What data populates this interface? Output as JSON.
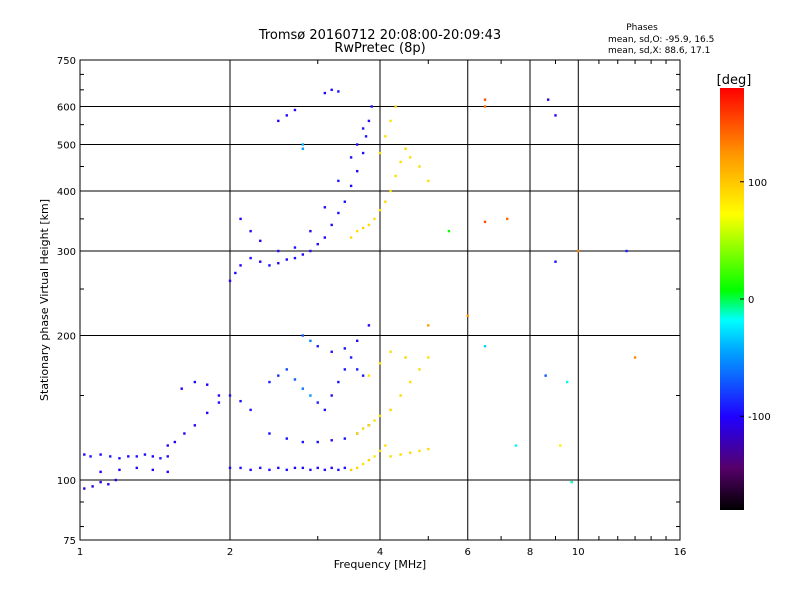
{
  "title": "Tromsø 20160712 20:08:00-20:09:43",
  "subtitle": "RwPretec (8p)",
  "stats": {
    "heading": "Phases",
    "line_o": "mean, sd,O: -95.9, 16.5",
    "line_x": "mean, sd,X: 88.6, 17.1"
  },
  "chart_data": {
    "type": "scatter",
    "title": "Tromsø 20160712 20:08:00-20:09:43",
    "subtitle": "RwPretec (8p)",
    "xlabel": "Frequency [MHz]",
    "ylabel": "Stationary phase Virtual Height [km]",
    "xscale": "log",
    "yscale": "log",
    "xlim": [
      1,
      16
    ],
    "ylim": [
      75,
      750
    ],
    "x_ticks": [
      1,
      2,
      4,
      6,
      8,
      10,
      16
    ],
    "x_tick_labels": [
      "1",
      "2",
      "4",
      "6",
      "8",
      "10",
      "16"
    ],
    "y_ticks": [
      75,
      100,
      200,
      300,
      400,
      500,
      600,
      750
    ],
    "y_tick_labels": [
      "75",
      "100",
      "200",
      "300",
      "400",
      "500",
      "600",
      "750"
    ],
    "grid": true,
    "colorbar": {
      "label": "[deg]",
      "range": [
        -180,
        180
      ],
      "ticks": [
        100,
        0,
        -100
      ],
      "tick_labels": [
        "100",
        "0",
        "-100"
      ]
    },
    "series": [
      {
        "name": "O",
        "mean_phase": -95.9,
        "sd_phase": 16.5,
        "points": [
          [
            1.02,
            113,
            -98
          ],
          [
            1.05,
            112,
            -95
          ],
          [
            1.1,
            113,
            -100
          ],
          [
            1.15,
            112,
            -92
          ],
          [
            1.2,
            111,
            -96
          ],
          [
            1.25,
            112,
            -99
          ],
          [
            1.3,
            112,
            -94
          ],
          [
            1.35,
            113,
            -97
          ],
          [
            1.4,
            112,
            -101
          ],
          [
            1.45,
            111,
            -93
          ],
          [
            1.5,
            112,
            -98
          ],
          [
            1.02,
            96,
            -110
          ],
          [
            1.06,
            97,
            -112
          ],
          [
            1.1,
            99,
            -108
          ],
          [
            1.14,
            98,
            -105
          ],
          [
            1.18,
            100,
            -110
          ],
          [
            1.1,
            104,
            -100
          ],
          [
            1.2,
            105,
            -102
          ],
          [
            1.3,
            106,
            -98
          ],
          [
            1.4,
            105,
            -100
          ],
          [
            1.5,
            104,
            -99
          ],
          [
            1.5,
            118,
            -105
          ],
          [
            1.55,
            120,
            -103
          ],
          [
            1.62,
            125,
            -101
          ],
          [
            1.7,
            130,
            -100
          ],
          [
            1.8,
            138,
            -99
          ],
          [
            1.9,
            145,
            -97
          ],
          [
            2.0,
            150,
            -95
          ],
          [
            2.1,
            146,
            -96
          ],
          [
            2.2,
            140,
            -94
          ],
          [
            1.6,
            155,
            -100
          ],
          [
            1.7,
            160,
            -98
          ],
          [
            1.8,
            158,
            -102
          ],
          [
            1.9,
            150,
            -99
          ],
          [
            2.0,
            106,
            -98
          ],
          [
            2.1,
            106,
            -96
          ],
          [
            2.2,
            105,
            -100
          ],
          [
            2.3,
            106,
            -95
          ],
          [
            2.4,
            105,
            -97
          ],
          [
            2.5,
            106,
            -98
          ],
          [
            2.6,
            105,
            -96
          ],
          [
            2.7,
            106,
            -99
          ],
          [
            2.8,
            106,
            -97
          ],
          [
            2.9,
            105,
            -95
          ],
          [
            3.0,
            106,
            -98
          ],
          [
            3.1,
            105,
            -96
          ],
          [
            3.2,
            106,
            -100
          ],
          [
            3.3,
            105,
            -97
          ],
          [
            3.4,
            106,
            -94
          ],
          [
            2.4,
            160,
            -90
          ],
          [
            2.5,
            165,
            -85
          ],
          [
            2.6,
            170,
            -75
          ],
          [
            2.7,
            162,
            -70
          ],
          [
            2.8,
            155,
            -60
          ],
          [
            2.9,
            150,
            -50
          ],
          [
            3.0,
            145,
            -90
          ],
          [
            3.1,
            140,
            -95
          ],
          [
            3.2,
            150,
            -98
          ],
          [
            3.3,
            160,
            -96
          ],
          [
            3.4,
            170,
            -94
          ],
          [
            3.5,
            180,
            -92
          ],
          [
            3.6,
            170,
            -90
          ],
          [
            3.7,
            165,
            -93
          ],
          [
            2.4,
            125,
            -98
          ],
          [
            2.6,
            122,
            -96
          ],
          [
            2.8,
            120,
            -95
          ],
          [
            3.0,
            120,
            -97
          ],
          [
            3.2,
            121,
            -98
          ],
          [
            3.4,
            122,
            -96
          ],
          [
            3.6,
            125,
            -90
          ],
          [
            3.8,
            130,
            -92
          ],
          [
            2.8,
            200,
            -70
          ],
          [
            2.9,
            195,
            -55
          ],
          [
            3.0,
            190,
            -90
          ],
          [
            3.2,
            185,
            -95
          ],
          [
            3.4,
            188,
            -96
          ],
          [
            3.6,
            195,
            -98
          ],
          [
            3.8,
            210,
            -99
          ],
          [
            2.0,
            260,
            -100
          ],
          [
            2.05,
            270,
            -98
          ],
          [
            2.1,
            280,
            -99
          ],
          [
            2.2,
            290,
            -97
          ],
          [
            2.3,
            285,
            -100
          ],
          [
            2.4,
            280,
            -96
          ],
          [
            2.5,
            283,
            -98
          ],
          [
            2.6,
            288,
            -99
          ],
          [
            2.7,
            290,
            -97
          ],
          [
            2.8,
            295,
            -100
          ],
          [
            2.9,
            300,
            -96
          ],
          [
            3.0,
            310,
            -98
          ],
          [
            3.1,
            320,
            -99
          ],
          [
            3.2,
            340,
            -97
          ],
          [
            3.3,
            360,
            -95
          ],
          [
            3.4,
            380,
            -96
          ],
          [
            3.5,
            410,
            -98
          ],
          [
            3.6,
            440,
            -97
          ],
          [
            3.7,
            480,
            -96
          ],
          [
            3.75,
            520,
            -95
          ],
          [
            3.8,
            560,
            -98
          ],
          [
            3.85,
            600,
            -96
          ],
          [
            2.1,
            350,
            -100
          ],
          [
            2.2,
            330,
            -98
          ],
          [
            2.3,
            315,
            -99
          ],
          [
            2.5,
            300,
            -97
          ],
          [
            2.7,
            305,
            -96
          ],
          [
            2.9,
            330,
            -98
          ],
          [
            3.1,
            370,
            -97
          ],
          [
            3.3,
            420,
            -95
          ],
          [
            3.5,
            470,
            -96
          ],
          [
            3.6,
            500,
            -97
          ],
          [
            3.7,
            540,
            -96
          ],
          [
            3.1,
            640,
            -100
          ],
          [
            3.2,
            650,
            -98
          ],
          [
            3.3,
            645,
            -97
          ],
          [
            2.5,
            560,
            -100
          ],
          [
            2.6,
            575,
            -98
          ],
          [
            2.7,
            590,
            -99
          ],
          [
            2.8,
            500,
            -40
          ],
          [
            2.8,
            490,
            -45
          ]
        ]
      },
      {
        "name": "X",
        "mean_phase": 88.6,
        "sd_phase": 17.1,
        "points": [
          [
            3.5,
            105,
            95
          ],
          [
            3.6,
            106,
            90
          ],
          [
            3.7,
            108,
            88
          ],
          [
            3.8,
            110,
            92
          ],
          [
            3.9,
            112,
            85
          ],
          [
            4.0,
            115,
            90
          ],
          [
            4.1,
            118,
            88
          ],
          [
            3.6,
            125,
            90
          ],
          [
            3.7,
            128,
            92
          ],
          [
            3.8,
            130,
            88
          ],
          [
            3.9,
            133,
            86
          ],
          [
            4.0,
            136,
            90
          ],
          [
            4.2,
            140,
            92
          ],
          [
            4.4,
            150,
            89
          ],
          [
            4.6,
            160,
            88
          ],
          [
            4.8,
            170,
            90
          ],
          [
            5.0,
            180,
            87
          ],
          [
            4.2,
            112,
            90
          ],
          [
            4.4,
            113,
            88
          ],
          [
            4.6,
            114,
            91
          ],
          [
            4.8,
            115,
            87
          ],
          [
            5.0,
            116,
            90
          ],
          [
            3.8,
            165,
            85
          ],
          [
            4.0,
            175,
            88
          ],
          [
            4.2,
            185,
            90
          ],
          [
            4.5,
            180,
            92
          ],
          [
            3.5,
            320,
            90
          ],
          [
            3.6,
            330,
            88
          ],
          [
            3.7,
            335,
            92
          ],
          [
            3.8,
            340,
            89
          ],
          [
            3.9,
            350,
            90
          ],
          [
            4.0,
            365,
            88
          ],
          [
            4.1,
            380,
            91
          ],
          [
            4.2,
            400,
            87
          ],
          [
            4.3,
            430,
            90
          ],
          [
            4.4,
            460,
            88
          ],
          [
            4.5,
            490,
            92
          ],
          [
            4.6,
            470,
            89
          ],
          [
            4.8,
            450,
            90
          ],
          [
            5.0,
            420,
            88
          ],
          [
            4.0,
            480,
            90
          ],
          [
            4.1,
            520,
            88
          ],
          [
            4.2,
            560,
            86
          ],
          [
            4.3,
            600,
            90
          ],
          [
            6.5,
            620,
            150
          ],
          [
            6.5,
            600,
            140
          ],
          [
            8.7,
            620,
            -110
          ],
          [
            9.0,
            575,
            -100
          ],
          [
            7.2,
            350,
            140
          ],
          [
            6.5,
            345,
            150
          ],
          [
            9.0,
            285,
            -95
          ],
          [
            10.0,
            300,
            130
          ],
          [
            12.5,
            300,
            -90
          ],
          [
            6.5,
            190,
            -30
          ],
          [
            8.6,
            165,
            -70
          ],
          [
            9.5,
            160,
            -20
          ],
          [
            9.2,
            118,
            80
          ],
          [
            7.5,
            118,
            -20
          ],
          [
            9.7,
            99,
            -10
          ],
          [
            13.0,
            180,
            130
          ],
          [
            5.5,
            330,
            10
          ],
          [
            6.0,
            220,
            120
          ],
          [
            5.0,
            210,
            120
          ]
        ]
      }
    ]
  }
}
